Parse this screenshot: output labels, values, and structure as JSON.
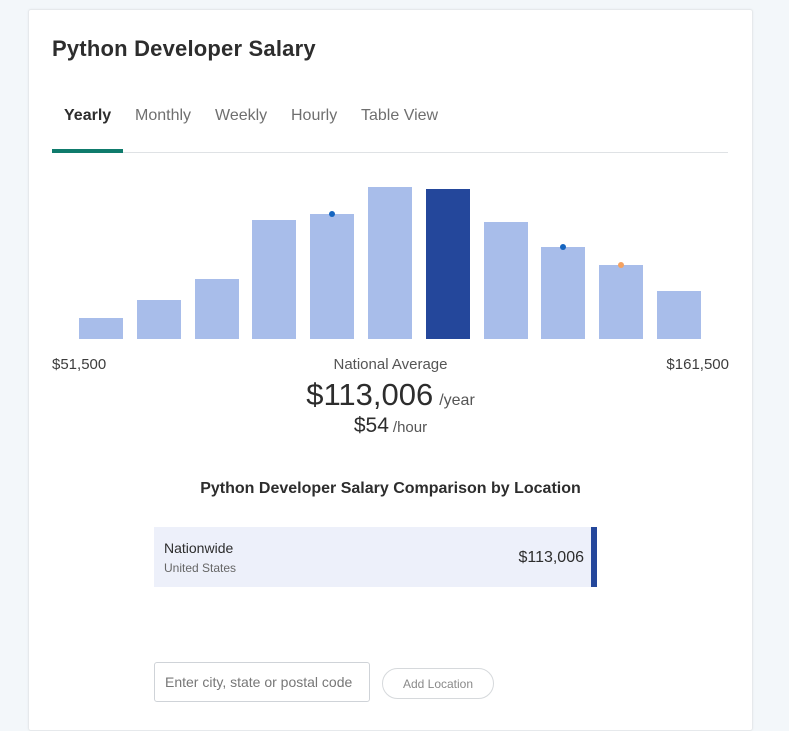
{
  "page": {
    "title": "Python Developer Salary"
  },
  "tabs": [
    {
      "label": "Yearly",
      "active": true
    },
    {
      "label": "Monthly",
      "active": false
    },
    {
      "label": "Weekly",
      "active": false
    },
    {
      "label": "Hourly",
      "active": false
    },
    {
      "label": "Table View",
      "active": false
    }
  ],
  "chart_data": {
    "type": "bar",
    "values": [
      20,
      38,
      58,
      115,
      121,
      147,
      145,
      113,
      89,
      72,
      46
    ],
    "highlight_index": 6,
    "markers": [
      {
        "bar_index": 4,
        "color": "#1565c0"
      },
      {
        "bar_index": 8,
        "color": "#1565c0"
      },
      {
        "bar_index": 9,
        "color": "#f4a261"
      }
    ],
    "x_min_label": "$51,500",
    "x_max_label": "$161,500",
    "center_label": "National Average",
    "colors": {
      "bar": "#a8bdea",
      "highlight": "#24479b"
    }
  },
  "average": {
    "yearly_value": "$113,006",
    "yearly_unit": "/year",
    "hourly_value": "$54",
    "hourly_unit": "/hour"
  },
  "comparison": {
    "title": "Python Developer Salary Comparison by Location",
    "rows": [
      {
        "name": "Nationwide",
        "sub": "United States",
        "value": "$113,006"
      }
    ]
  },
  "location_form": {
    "placeholder": "Enter city, state or postal code",
    "button_label": "Add Location"
  }
}
